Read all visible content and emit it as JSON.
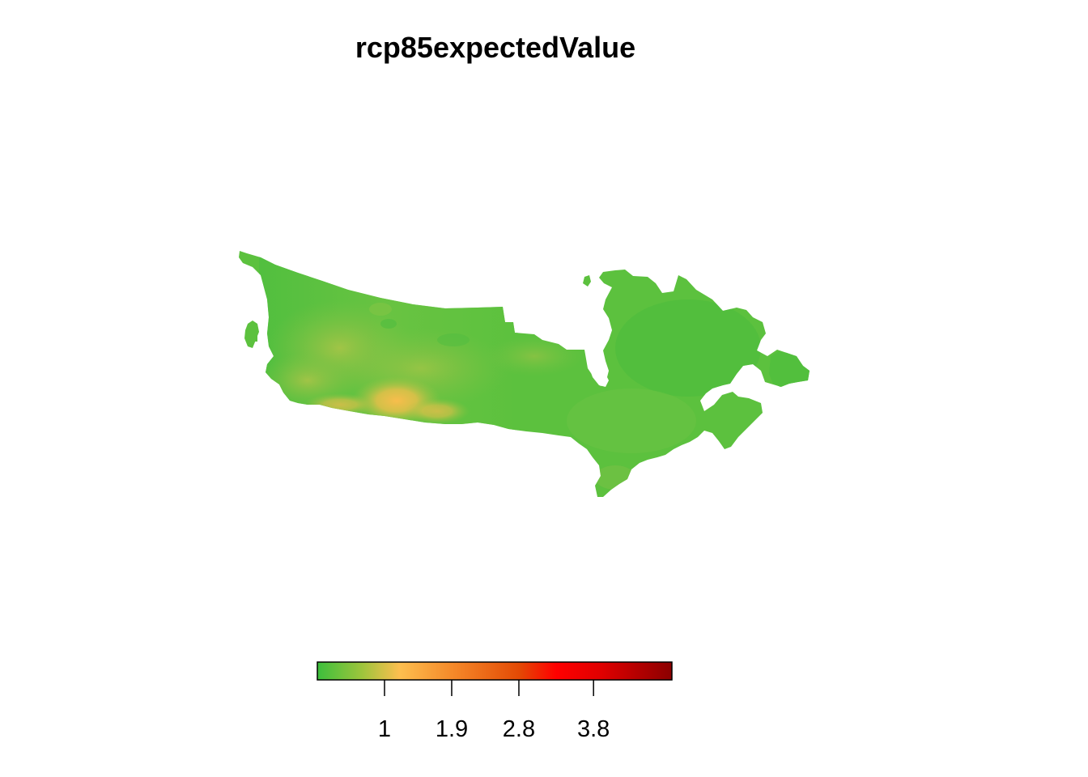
{
  "title": "rcp85expectedValue",
  "legend": {
    "tick_labels": [
      "1",
      "1.9",
      "2.8",
      "3.8"
    ],
    "tick_values": [
      1,
      1.9,
      2.8,
      3.8
    ],
    "range": [
      0.1,
      4.85
    ],
    "color_stops": [
      {
        "value": 0.1,
        "color": "#3cbf3c"
      },
      {
        "value": 0.7,
        "color": "#9ec43c"
      },
      {
        "value": 1.2,
        "color": "#fdbf4f"
      },
      {
        "value": 1.9,
        "color": "#f58a2a"
      },
      {
        "value": 2.8,
        "color": "#e34a05"
      },
      {
        "value": 3.3,
        "color": "#ff0000"
      },
      {
        "value": 3.9,
        "color": "#e00000"
      },
      {
        "value": 4.85,
        "color": "#8b0000"
      }
    ]
  },
  "map": {
    "region": "Canada",
    "base_color": "#5cc13e",
    "dominant_value_range": [
      0.1,
      1.4
    ],
    "hotspot_color": "#f5c04a"
  }
}
